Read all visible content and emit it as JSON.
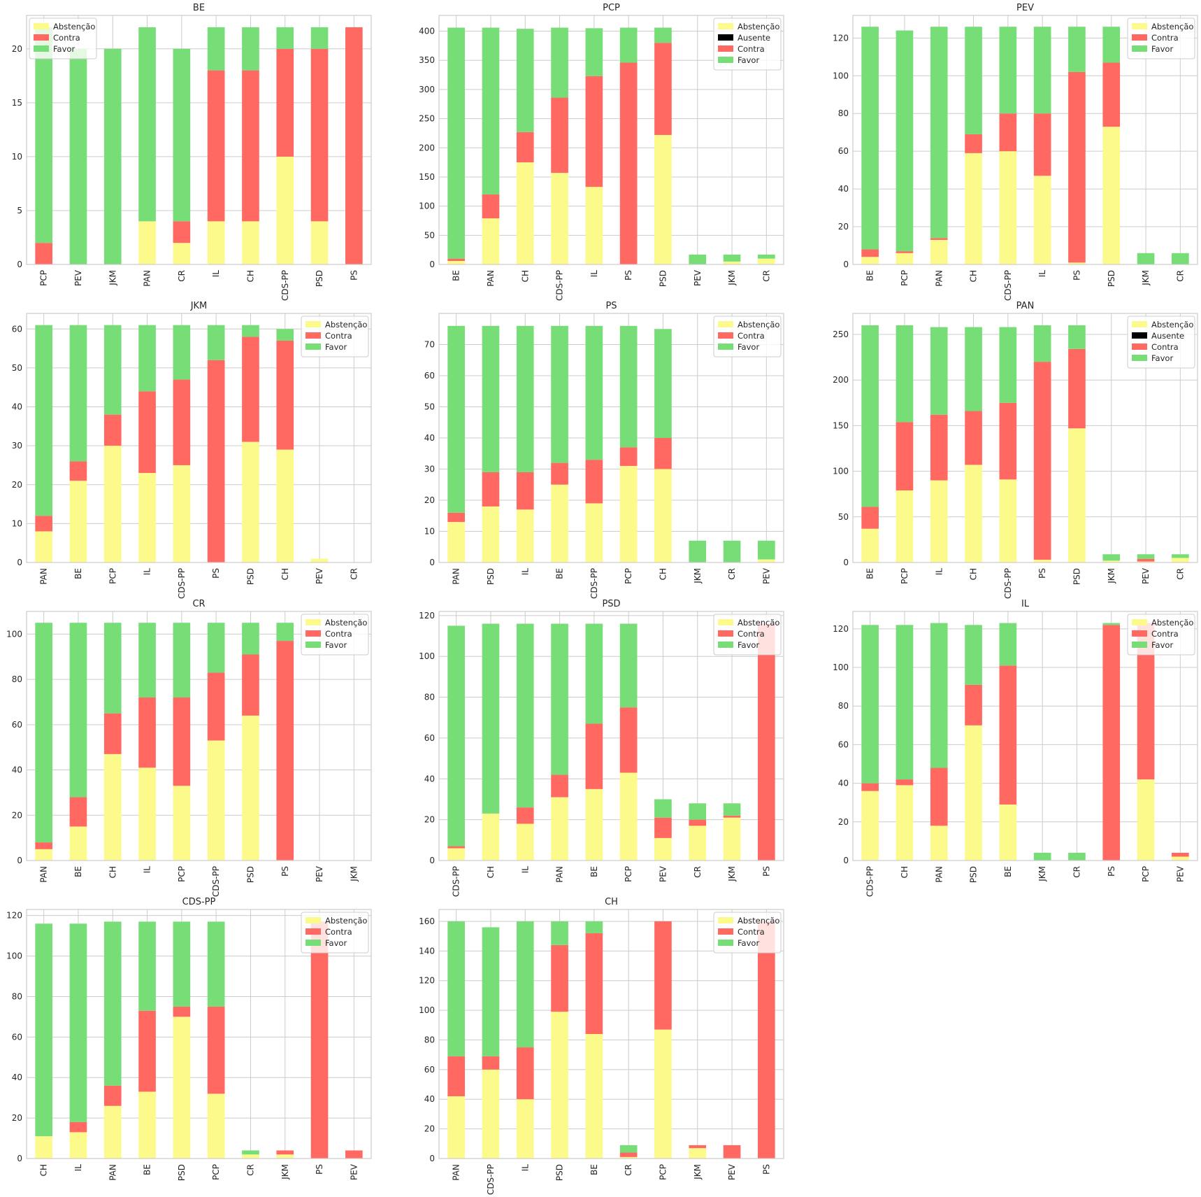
{
  "colors": {
    "Abstenção": "#fdfa8c",
    "Ausente": "#000000",
    "Contra": "#ff6961",
    "Favor": "#77dd77"
  },
  "chart_data": [
    {
      "type": "bar",
      "stacked": true,
      "title": "BE",
      "legend": "upper-left",
      "grid": true,
      "ylim": [
        0,
        23.1
      ],
      "yticks": [
        0,
        5,
        10,
        15,
        20
      ],
      "categories": [
        "PCP",
        "PEV",
        "JKM",
        "PAN",
        "CR",
        "IL",
        "CH",
        "CDS-PP",
        "PSD",
        "PS"
      ],
      "series": [
        {
          "name": "Abstenção",
          "values": [
            0,
            0,
            0,
            4,
            2,
            4,
            4,
            10,
            4,
            0
          ]
        },
        {
          "name": "Contra",
          "values": [
            2,
            0,
            0,
            0,
            2,
            14,
            14,
            10,
            16,
            22
          ]
        },
        {
          "name": "Favor",
          "values": [
            20,
            20,
            20,
            18,
            16,
            4,
            4,
            2,
            2,
            0
          ]
        }
      ]
    },
    {
      "type": "bar",
      "stacked": true,
      "title": "PCP",
      "legend": "upper-right",
      "grid": true,
      "ylim": [
        0,
        427
      ],
      "yticks": [
        0,
        50,
        100,
        150,
        200,
        250,
        300,
        350,
        400
      ],
      "categories": [
        "BE",
        "PAN",
        "CH",
        "CDS-PP",
        "IL",
        "PS",
        "PSD",
        "PEV",
        "JKM",
        "CR"
      ],
      "series": [
        {
          "name": "Abstenção",
          "values": [
            6,
            79,
            175,
            157,
            133,
            0,
            222,
            0,
            5,
            10
          ]
        },
        {
          "name": "Ausente",
          "values": [
            0,
            0,
            0,
            0,
            0,
            0,
            0,
            0,
            0,
            0
          ]
        },
        {
          "name": "Contra",
          "values": [
            4,
            41,
            52,
            129,
            190,
            346,
            158,
            0,
            0,
            0
          ]
        },
        {
          "name": "Favor",
          "values": [
            396,
            286,
            177,
            120,
            82,
            60,
            26,
            17,
            12,
            7
          ]
        }
      ]
    },
    {
      "type": "bar",
      "stacked": true,
      "title": "PEV",
      "legend": "upper-right",
      "grid": true,
      "ylim": [
        0,
        132
      ],
      "yticks": [
        0,
        20,
        40,
        60,
        80,
        100,
        120
      ],
      "categories": [
        "BE",
        "PCP",
        "PAN",
        "CH",
        "CDS-PP",
        "IL",
        "PS",
        "PSD",
        "JKM",
        "CR"
      ],
      "series": [
        {
          "name": "Abstenção",
          "values": [
            4,
            6,
            13,
            59,
            60,
            47,
            1,
            73,
            0,
            0
          ]
        },
        {
          "name": "Contra",
          "values": [
            4,
            1,
            1,
            10,
            20,
            33,
            101,
            34,
            0,
            0
          ]
        },
        {
          "name": "Favor",
          "values": [
            118,
            117,
            112,
            57,
            46,
            46,
            24,
            19,
            6,
            6
          ]
        }
      ]
    },
    {
      "type": "bar",
      "stacked": true,
      "title": "JKM",
      "legend": "upper-right",
      "grid": true,
      "ylim": [
        0,
        64
      ],
      "yticks": [
        0,
        10,
        20,
        30,
        40,
        50,
        60
      ],
      "categories": [
        "PAN",
        "BE",
        "PCP",
        "IL",
        "CDS-PP",
        "PS",
        "PSD",
        "CH",
        "PEV",
        "CR"
      ],
      "series": [
        {
          "name": "Abstenção",
          "values": [
            8,
            21,
            30,
            23,
            25,
            0,
            31,
            29,
            1,
            0
          ]
        },
        {
          "name": "Contra",
          "values": [
            4,
            5,
            8,
            21,
            22,
            52,
            27,
            28,
            0,
            0
          ]
        },
        {
          "name": "Favor",
          "values": [
            49,
            35,
            23,
            17,
            14,
            9,
            3,
            3,
            0,
            0
          ]
        }
      ]
    },
    {
      "type": "bar",
      "stacked": true,
      "title": "PS",
      "legend": "upper-right",
      "grid": true,
      "ylim": [
        0,
        80
      ],
      "yticks": [
        0,
        10,
        20,
        30,
        40,
        50,
        60,
        70
      ],
      "categories": [
        "PAN",
        "PSD",
        "IL",
        "BE",
        "CDS-PP",
        "PCP",
        "CH",
        "JKM",
        "CR",
        "PEV"
      ],
      "series": [
        {
          "name": "Abstenção",
          "values": [
            13,
            18,
            17,
            25,
            19,
            31,
            30,
            0,
            0,
            1
          ]
        },
        {
          "name": "Contra",
          "values": [
            3,
            11,
            12,
            7,
            14,
            6,
            10,
            0,
            0,
            0
          ]
        },
        {
          "name": "Favor",
          "values": [
            60,
            47,
            47,
            44,
            43,
            39,
            35,
            7,
            7,
            6
          ]
        }
      ]
    },
    {
      "type": "bar",
      "stacked": true,
      "title": "PAN",
      "legend": "upper-right",
      "grid": true,
      "ylim": [
        0,
        273
      ],
      "yticks": [
        0,
        50,
        100,
        150,
        200,
        250
      ],
      "categories": [
        "BE",
        "PCP",
        "IL",
        "CH",
        "CDS-PP",
        "PS",
        "PSD",
        "JKM",
        "PEV",
        "CR"
      ],
      "series": [
        {
          "name": "Abstenção",
          "values": [
            37,
            79,
            90,
            107,
            91,
            3,
            147,
            2,
            1,
            5
          ]
        },
        {
          "name": "Ausente",
          "values": [
            0,
            0,
            0,
            0,
            0,
            0,
            0,
            0,
            0,
            0
          ]
        },
        {
          "name": "Contra",
          "values": [
            24,
            75,
            72,
            59,
            84,
            217,
            87,
            0,
            3,
            0
          ]
        },
        {
          "name": "Favor",
          "values": [
            199,
            106,
            96,
            92,
            83,
            40,
            26,
            7,
            5,
            4
          ]
        }
      ]
    },
    {
      "type": "bar",
      "stacked": true,
      "title": "CR",
      "legend": "upper-right",
      "grid": true,
      "ylim": [
        0,
        110
      ],
      "yticks": [
        0,
        20,
        40,
        60,
        80,
        100
      ],
      "categories": [
        "PAN",
        "BE",
        "CH",
        "IL",
        "PCP",
        "CDS-PP",
        "PSD",
        "PS",
        "PEV",
        "JKM"
      ],
      "series": [
        {
          "name": "Abstenção",
          "values": [
            5,
            15,
            47,
            41,
            33,
            53,
            64,
            0,
            0,
            0
          ]
        },
        {
          "name": "Contra",
          "values": [
            3,
            13,
            18,
            31,
            39,
            30,
            27,
            97,
            0,
            0
          ]
        },
        {
          "name": "Favor",
          "values": [
            97,
            77,
            40,
            33,
            33,
            22,
            14,
            8,
            0,
            0
          ]
        }
      ]
    },
    {
      "type": "bar",
      "stacked": true,
      "title": "PSD",
      "legend": "upper-right",
      "grid": true,
      "ylim": [
        0,
        122
      ],
      "yticks": [
        0,
        20,
        40,
        60,
        80,
        100,
        120
      ],
      "categories": [
        "CDS-PP",
        "CH",
        "IL",
        "PAN",
        "BE",
        "PCP",
        "PEV",
        "CR",
        "JKM",
        "PS"
      ],
      "series": [
        {
          "name": "Abstenção",
          "values": [
            6,
            23,
            18,
            31,
            35,
            43,
            11,
            17,
            21,
            0
          ]
        },
        {
          "name": "Contra",
          "values": [
            1,
            0,
            8,
            11,
            32,
            32,
            10,
            3,
            1,
            116
          ]
        },
        {
          "name": "Favor",
          "values": [
            108,
            93,
            90,
            74,
            49,
            41,
            9,
            8,
            6,
            0
          ]
        }
      ]
    },
    {
      "type": "bar",
      "stacked": true,
      "title": "IL",
      "legend": "upper-right",
      "grid": true,
      "ylim": [
        0,
        129
      ],
      "yticks": [
        0,
        20,
        40,
        60,
        80,
        100,
        120
      ],
      "categories": [
        "CDS-PP",
        "CH",
        "PAN",
        "PSD",
        "BE",
        "JKM",
        "CR",
        "PS",
        "PCP",
        "PEV"
      ],
      "series": [
        {
          "name": "Abstenção",
          "values": [
            36,
            39,
            18,
            70,
            29,
            0,
            0,
            0,
            42,
            2
          ]
        },
        {
          "name": "Contra",
          "values": [
            4,
            3,
            30,
            21,
            72,
            0,
            0,
            122,
            81,
            2
          ]
        },
        {
          "name": "Favor",
          "values": [
            82,
            80,
            75,
            31,
            22,
            4,
            4,
            1,
            0,
            0
          ]
        }
      ]
    },
    {
      "type": "bar",
      "stacked": true,
      "title": "CDS-PP",
      "legend": "upper-right",
      "grid": true,
      "ylim": [
        0,
        123
      ],
      "yticks": [
        0,
        20,
        40,
        60,
        80,
        100,
        120
      ],
      "categories": [
        "CH",
        "IL",
        "PAN",
        "BE",
        "PSD",
        "PCP",
        "CR",
        "JKM",
        "PS",
        "PEV"
      ],
      "series": [
        {
          "name": "Abstenção",
          "values": [
            11,
            13,
            26,
            33,
            70,
            32,
            2,
            2,
            0,
            0
          ]
        },
        {
          "name": "Contra",
          "values": [
            0,
            5,
            10,
            40,
            5,
            43,
            0,
            2,
            117,
            4
          ]
        },
        {
          "name": "Favor",
          "values": [
            105,
            98,
            81,
            44,
            42,
            42,
            2,
            0,
            0,
            0
          ]
        }
      ]
    },
    {
      "type": "bar",
      "stacked": true,
      "title": "CH",
      "legend": "upper-right",
      "grid": true,
      "ylim": [
        0,
        168
      ],
      "yticks": [
        0,
        20,
        40,
        60,
        80,
        100,
        120,
        140,
        160
      ],
      "categories": [
        "PAN",
        "CDS-PP",
        "IL",
        "PSD",
        "BE",
        "CR",
        "PCP",
        "JKM",
        "PEV",
        "PS"
      ],
      "series": [
        {
          "name": "Abstenção",
          "values": [
            42,
            60,
            40,
            99,
            84,
            1,
            87,
            7,
            0,
            0
          ]
        },
        {
          "name": "Contra",
          "values": [
            27,
            9,
            35,
            45,
            68,
            3,
            73,
            2,
            9,
            160
          ]
        },
        {
          "name": "Favor",
          "values": [
            91,
            87,
            85,
            16,
            8,
            5,
            0,
            0,
            0,
            0
          ]
        }
      ]
    }
  ]
}
